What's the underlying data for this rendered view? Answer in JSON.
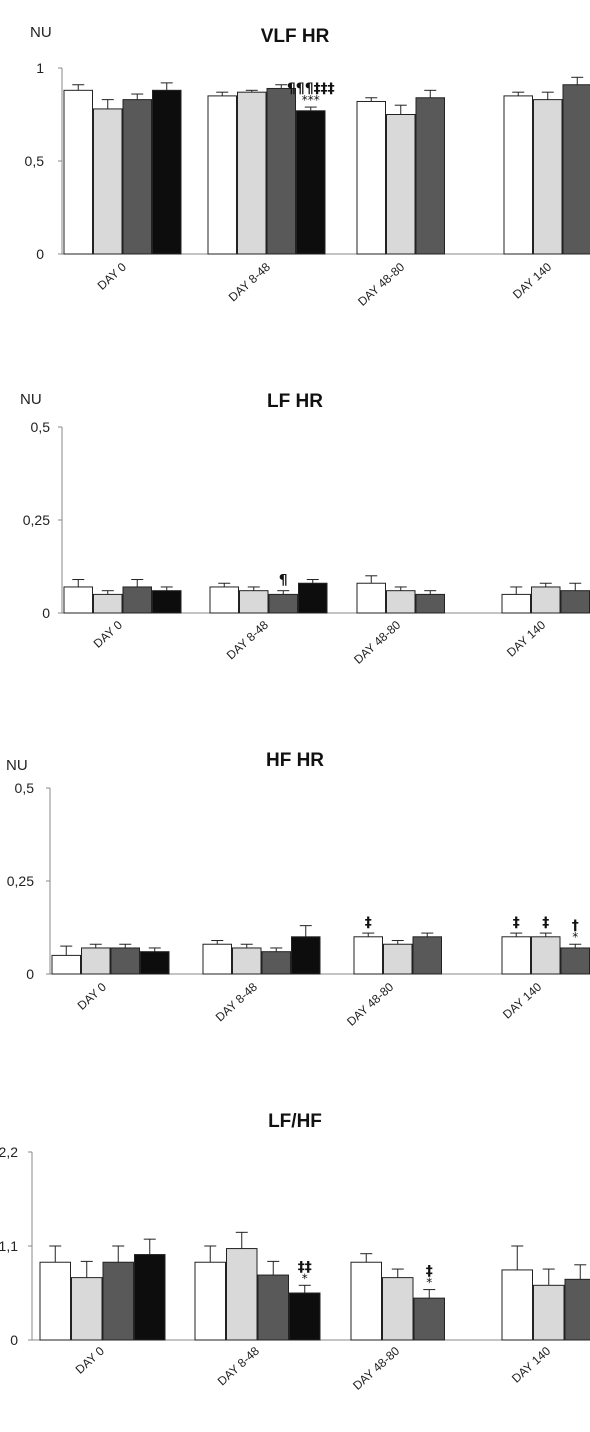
{
  "colors": {
    "white": "#ffffff",
    "light-gray": "#d9d9d9",
    "dark-gray": "#595959",
    "black": "#0d0d0d",
    "axis": "#888888",
    "outline": "#222222"
  },
  "chart_data": [
    {
      "type": "bar",
      "title": "VLF HR",
      "ylabel": "NU",
      "ylim": [
        0,
        1
      ],
      "yticks": [
        "0",
        "0,5",
        "1"
      ],
      "categories": [
        "DAY 0",
        "DAY 8-48",
        "DAY 48-80",
        "DAY 140"
      ],
      "series": [
        {
          "values": [
            0.88,
            0.85,
            0.82,
            0.85
          ],
          "errors": [
            0.03,
            0.02,
            0.02,
            0.02
          ]
        },
        {
          "values": [
            0.78,
            0.87,
            0.75,
            0.83
          ],
          "errors": [
            0.05,
            0.01,
            0.05,
            0.04
          ]
        },
        {
          "values": [
            0.83,
            0.89,
            0.84,
            0.91
          ],
          "errors": [
            0.03,
            0.02,
            0.04,
            0.04
          ]
        },
        {
          "values": [
            0.88,
            0.77,
            null,
            null
          ],
          "errors": [
            0.04,
            0.02,
            null,
            null
          ]
        }
      ],
      "annotations": [
        {
          "category": 1,
          "series": 3,
          "text": "¶¶¶‡‡‡",
          "sub": "***"
        }
      ]
    },
    {
      "type": "bar",
      "title": "LF HR",
      "ylabel": "NU",
      "ylim": [
        0,
        0.5
      ],
      "yticks": [
        "0",
        "0,25",
        "0,5"
      ],
      "categories": [
        "DAY 0",
        "DAY 8-48",
        "DAY 48-80",
        "DAY 140"
      ],
      "series": [
        {
          "values": [
            0.07,
            0.07,
            0.08,
            0.05
          ],
          "errors": [
            0.02,
            0.01,
            0.02,
            0.02
          ]
        },
        {
          "values": [
            0.05,
            0.06,
            0.06,
            0.07
          ],
          "errors": [
            0.01,
            0.01,
            0.01,
            0.01
          ]
        },
        {
          "values": [
            0.07,
            0.05,
            0.05,
            0.06
          ],
          "errors": [
            0.02,
            0.01,
            0.01,
            0.02
          ]
        },
        {
          "values": [
            0.06,
            0.08,
            null,
            null
          ],
          "errors": [
            0.01,
            0.01,
            null,
            null
          ]
        }
      ],
      "annotations": [
        {
          "category": 1,
          "series": 2,
          "text": "¶",
          "sub": ""
        }
      ]
    },
    {
      "type": "bar",
      "title": "HF HR",
      "ylabel": "NU",
      "ylim": [
        0,
        0.5
      ],
      "yticks": [
        "0",
        "0,25",
        "0,5"
      ],
      "categories": [
        "DAY 0",
        "DAY 8-48",
        "DAY 48-80",
        "DAY 140"
      ],
      "series": [
        {
          "values": [
            0.05,
            0.08,
            0.1,
            0.1
          ],
          "errors": [
            0.025,
            0.01,
            0.01,
            0.01
          ]
        },
        {
          "values": [
            0.07,
            0.07,
            0.08,
            0.1
          ],
          "errors": [
            0.01,
            0.01,
            0.01,
            0.01
          ]
        },
        {
          "values": [
            0.07,
            0.06,
            0.1,
            0.07
          ],
          "errors": [
            0.01,
            0.01,
            0.01,
            0.01
          ]
        },
        {
          "values": [
            0.06,
            0.1,
            null,
            null
          ],
          "errors": [
            0.01,
            0.03,
            null,
            null
          ]
        }
      ],
      "annotations": [
        {
          "category": 2,
          "series": 0,
          "text": "‡",
          "sub": ""
        },
        {
          "category": 3,
          "series": 0,
          "text": "‡",
          "sub": ""
        },
        {
          "category": 3,
          "series": 1,
          "text": "‡",
          "sub": ""
        },
        {
          "category": 3,
          "series": 2,
          "text": "†",
          "sub": "*"
        }
      ]
    },
    {
      "type": "bar",
      "title": "LF/HF",
      "ylabel": "",
      "ylim": [
        0,
        2.2
      ],
      "yticks": [
        "0",
        "1,1",
        "2,2"
      ],
      "categories": [
        "DAY 0",
        "DAY 8-48",
        "DAY 48-80",
        "DAY 140"
      ],
      "series": [
        {
          "values": [
            0.91,
            0.91,
            0.91,
            0.82
          ],
          "errors": [
            0.19,
            0.19,
            0.1,
            0.28
          ]
        },
        {
          "values": [
            0.73,
            1.07,
            0.73,
            0.64
          ],
          "errors": [
            0.19,
            0.19,
            0.1,
            0.19
          ]
        },
        {
          "values": [
            0.91,
            0.76,
            0.49,
            0.71
          ],
          "errors": [
            0.19,
            0.16,
            0.1,
            0.17
          ]
        },
        {
          "values": [
            1.0,
            0.55,
            null,
            null
          ],
          "errors": [
            0.18,
            0.09,
            null,
            null
          ]
        }
      ],
      "annotations": [
        {
          "category": 1,
          "series": 3,
          "text": "‡‡",
          "sub": "*"
        },
        {
          "category": 2,
          "series": 2,
          "text": "‡",
          "sub": "*"
        }
      ]
    }
  ]
}
